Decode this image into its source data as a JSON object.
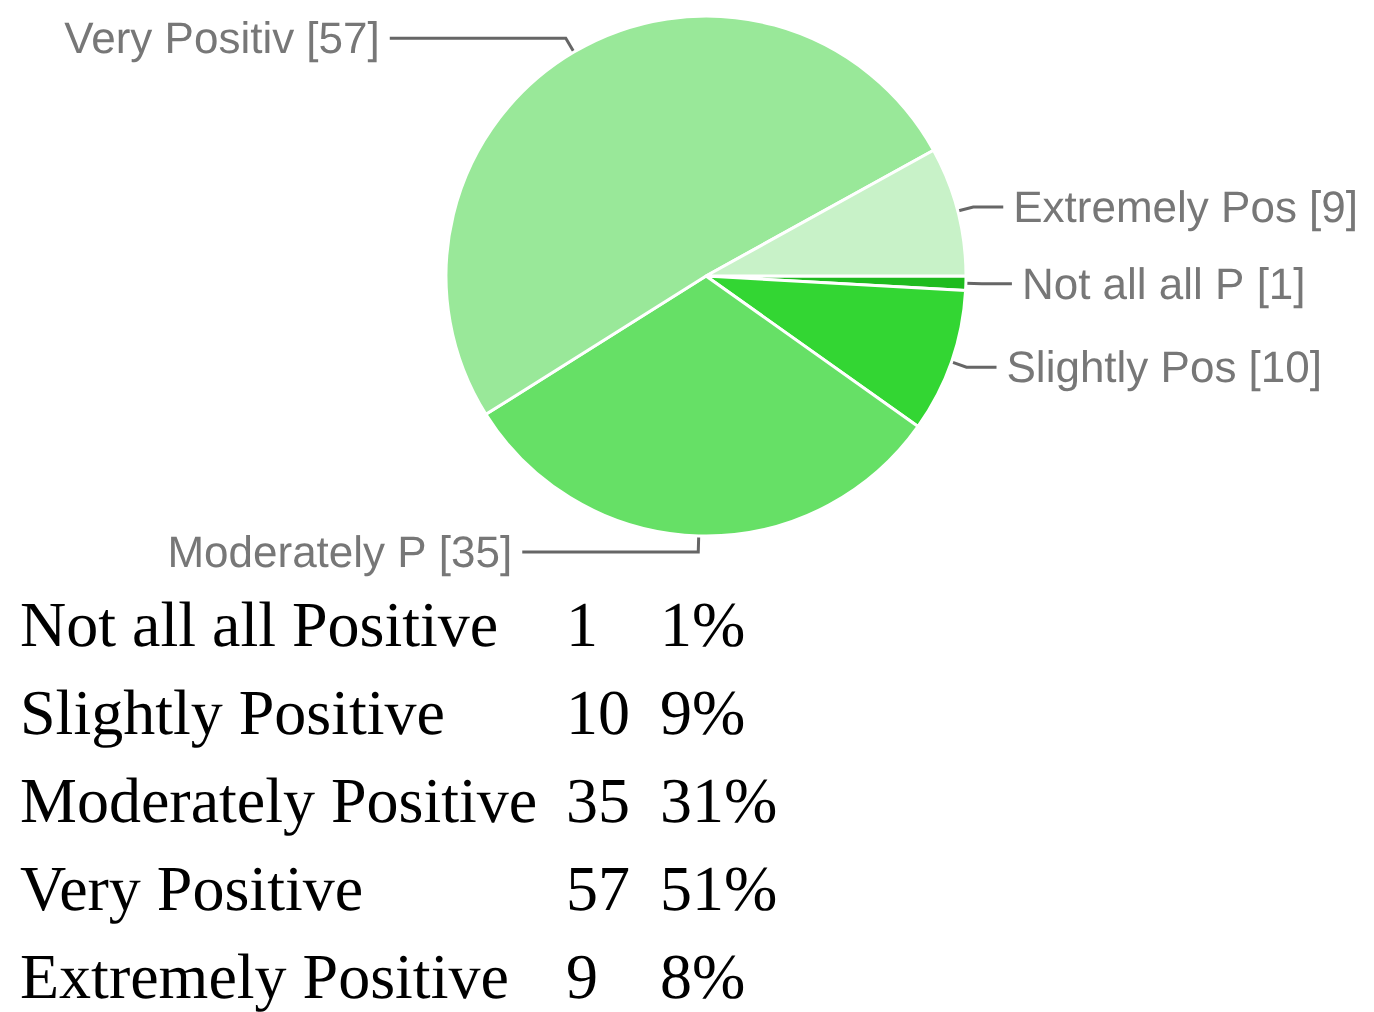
{
  "chart_data": [
    {
      "type": "pie",
      "categories": [
        "Not all all P",
        "Slightly Pos",
        "Moderately P",
        "Very Positiv",
        "Extremely Pos"
      ],
      "values": [
        1,
        10,
        35,
        57,
        9
      ],
      "colors": [
        "#1fbb1f",
        "#33d633",
        "#66e066",
        "#99e899",
        "#c8f2c8"
      ],
      "value_labels": [
        "[1]",
        "[10]",
        "[35]",
        "[57]",
        "[9]"
      ]
    },
    {
      "type": "other",
      "annotations": [
        "Not all all Positive",
        "1",
        "1%",
        "Slightly Positive",
        "10",
        "9%",
        "Moderately Positive",
        "35",
        "31%",
        "Very Positive",
        "57",
        "51%",
        "Extremely Positive",
        "9",
        "8%"
      ]
    }
  ]
}
